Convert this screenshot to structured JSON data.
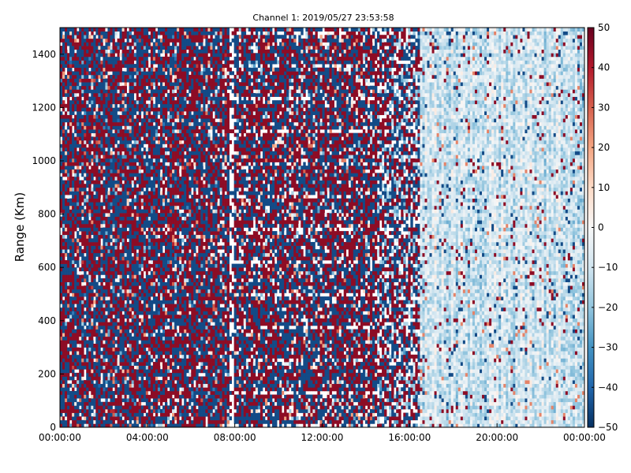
{
  "chart_data": {
    "type": "heatmap",
    "title": "Channel 1: 2019/05/27 23:53:58",
    "xlabel": "",
    "ylabel": "Range (Km)",
    "x_ticks": [
      "00:00:00",
      "04:00:00",
      "08:00:00",
      "12:00:00",
      "16:00:00",
      "20:00:00",
      "00:00:00"
    ],
    "x_range_hours": [
      0,
      24
    ],
    "y_ticks": [
      0,
      200,
      400,
      600,
      800,
      1000,
      1200,
      1400
    ],
    "ylim": [
      0,
      1500
    ],
    "colorbar": {
      "ticks": [
        50,
        40,
        30,
        20,
        10,
        0,
        -10,
        -20,
        -30,
        -40,
        -50
      ],
      "range": [
        -50,
        50
      ],
      "colormap": "RdBu_r",
      "colors": [
        "#053061",
        "#2166ac",
        "#4393c3",
        "#92c5de",
        "#d1e5f0",
        "#f7f7f7",
        "#fddbc7",
        "#f4a582",
        "#d6604d",
        "#b2182b",
        "#67001f"
      ]
    },
    "segments": [
      {
        "hours": [
          0,
          7.8
        ],
        "pattern": "noise saturated at extremes (about -45 or +45)"
      },
      {
        "hours": [
          7.8,
          8.0
        ],
        "pattern": "mostly blank"
      },
      {
        "hours": [
          8.0,
          14.5
        ],
        "pattern": "extremes with horizontal streaks"
      },
      {
        "hours": [
          14.5,
          16.5
        ],
        "pattern": "transition with blank gaps"
      },
      {
        "hours": [
          16.5,
          24
        ],
        "pattern": "mostly -25 to +5 with sparse extreme values"
      }
    ],
    "grid": false
  }
}
